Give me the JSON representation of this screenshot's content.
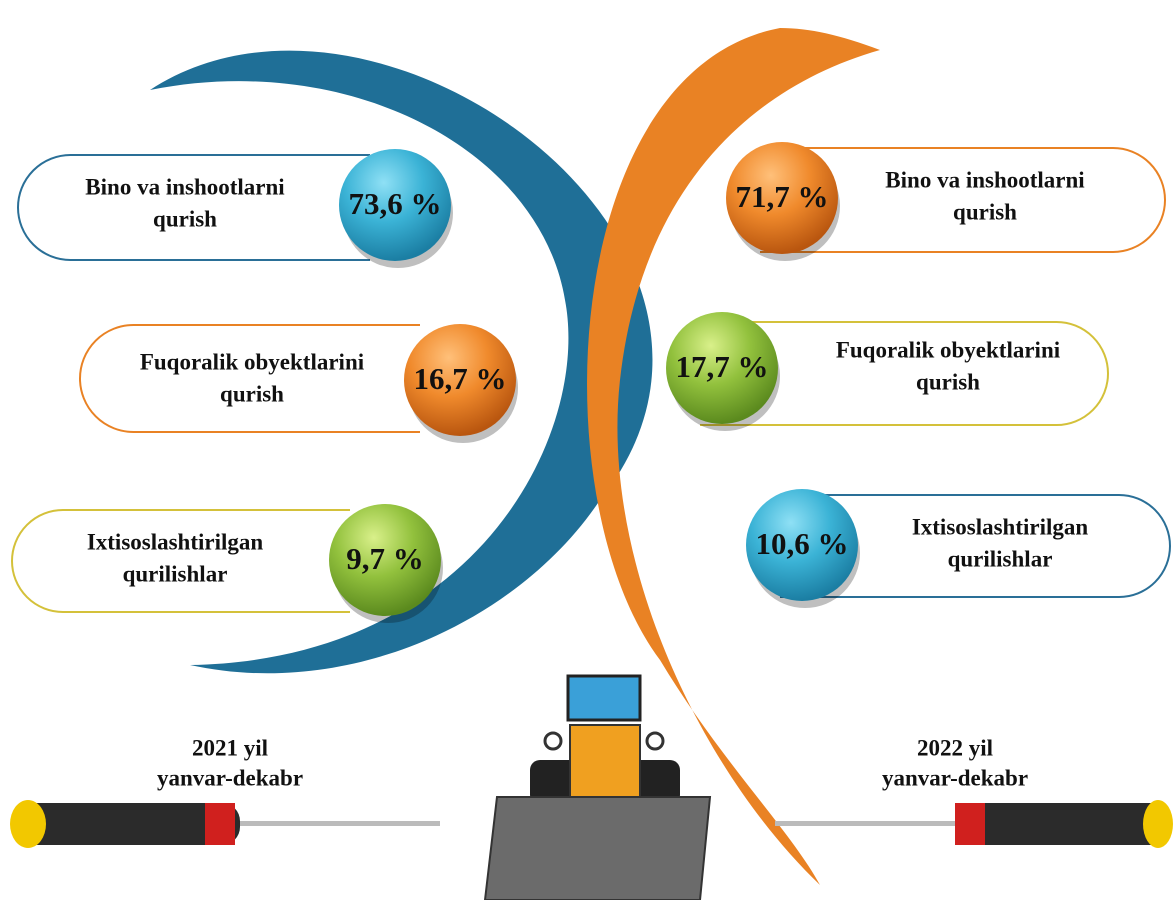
{
  "left": {
    "period": [
      "2021 yil",
      "yanvar-dekabr"
    ],
    "items": [
      {
        "label": [
          "Bino va inshootlarni",
          "qurish"
        ],
        "value": "73,6 %"
      },
      {
        "label": [
          "Fuqoralik obyektlarini",
          "qurish"
        ],
        "value": "16,7 %"
      },
      {
        "label": [
          "Ixtisoslashtirilgan",
          "qurilishlar"
        ],
        "value": "9,7 %"
      }
    ]
  },
  "right": {
    "period": [
      "2022 yil",
      "yanvar-dekabr"
    ],
    "items": [
      {
        "label": [
          "Bino va inshootlarni",
          "qurish"
        ],
        "value": "71,7 %"
      },
      {
        "label": [
          "Fuqoralik obyektlarini",
          "qurish"
        ],
        "value": "17,7 %"
      },
      {
        "label": [
          "Ixtisoslashtirilgan",
          "qurilishlar"
        ],
        "value": "10,6 %"
      }
    ]
  }
}
